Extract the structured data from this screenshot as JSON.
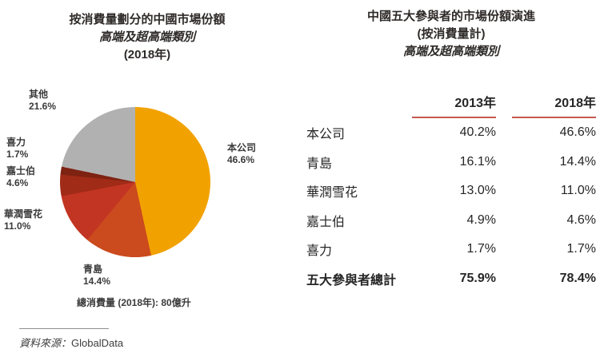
{
  "accent": {
    "header_underline": "#C5584E"
  },
  "left_chart": {
    "title_lines": [
      "按消費量劃分的中國市場份額",
      "高端及超高端類別",
      "(2018年)"
    ],
    "note": "總消費量 (2018年): 80億升",
    "slices": [
      {
        "label": "本公司",
        "value": "46.6%",
        "pct": 46.6,
        "color": "#F2A200"
      },
      {
        "label": "青島",
        "value": "14.4%",
        "pct": 14.4,
        "color": "#CB4A1E"
      },
      {
        "label": "華潤雪花",
        "value": "11.0%",
        "pct": 11.0,
        "color": "#C23522"
      },
      {
        "label": "嘉士伯",
        "value": "4.6%",
        "pct": 4.6,
        "color": "#A02B17"
      },
      {
        "label": "喜力",
        "value": "1.7%",
        "pct": 1.7,
        "color": "#7E2212"
      },
      {
        "label": "其他",
        "value": "21.6%",
        "pct": 21.6,
        "color": "#B1B1B1"
      }
    ]
  },
  "right_table": {
    "title_lines": [
      "中國五大參與者的市場份額演進",
      "(按消費量計)",
      "高端及超高端類別"
    ],
    "columns": [
      "2013年",
      "2018年"
    ],
    "rows": [
      {
        "name": "本公司",
        "y2013": "40.2%",
        "y2018": "46.6%"
      },
      {
        "name": "青島",
        "y2013": "16.1%",
        "y2018": "14.4%"
      },
      {
        "name": "華潤雪花",
        "y2013": "13.0%",
        "y2018": "11.0%"
      },
      {
        "name": "嘉士伯",
        "y2013": "4.9%",
        "y2018": "4.6%"
      },
      {
        "name": "喜力",
        "y2013": "1.7%",
        "y2018": "1.7%"
      },
      {
        "name": "五大參與者總計",
        "y2013": "75.9%",
        "y2018": "78.4%"
      }
    ]
  },
  "source": {
    "label": "資料來源：",
    "value": "GlobalData"
  },
  "chart_data": [
    {
      "type": "pie",
      "title": "按消費量劃分的中國市場份額 高端及超高端類別 (2018年)",
      "labels": [
        "本公司",
        "青島",
        "華潤雪花",
        "嘉士伯",
        "喜力",
        "其他"
      ],
      "values": [
        46.6,
        14.4,
        11.0,
        4.6,
        1.7,
        21.6
      ],
      "colors": [
        "#F2A200",
        "#CB4A1E",
        "#C23522",
        "#A02B17",
        "#7E2212",
        "#B1B1B1"
      ],
      "annotations": [
        "總消費量 (2018年): 80億升"
      ],
      "legend_position": "around-slices",
      "source": "資料來源：GlobalData"
    },
    {
      "type": "table",
      "title": "中國五大參與者的市場份額演進 (按消費量計) 高端及超高端類別",
      "columns": [
        "",
        "2013年",
        "2018年"
      ],
      "rows": [
        [
          "本公司",
          "40.2%",
          "46.6%"
        ],
        [
          "青島",
          "16.1%",
          "14.4%"
        ],
        [
          "華潤雪花",
          "13.0%",
          "11.0%"
        ],
        [
          "嘉士伯",
          "4.9%",
          "4.6%"
        ],
        [
          "喜力",
          "1.7%",
          "1.7%"
        ],
        [
          "五大參與者總計",
          "75.9%",
          "78.4%"
        ]
      ],
      "notes": "last row is bold total; year headers underlined in red"
    }
  ]
}
